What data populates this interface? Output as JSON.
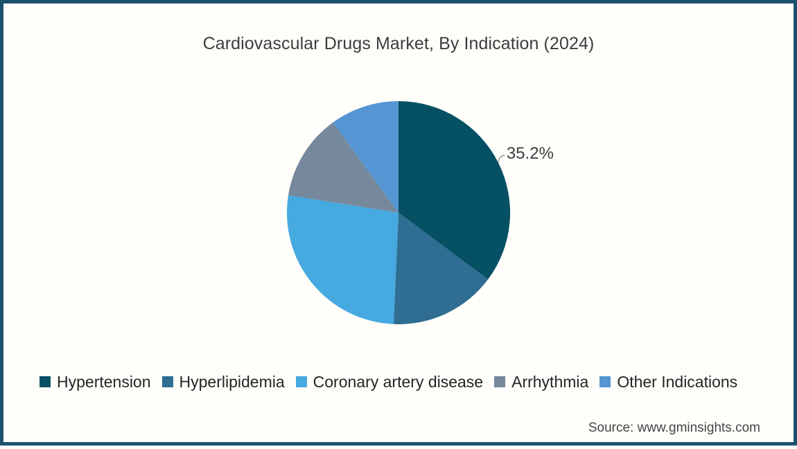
{
  "frame": {
    "border_color": "#1c516d",
    "background_color": "#fffefa"
  },
  "header": {
    "title": "Cardiovascular Drugs Market, By Indication (2024)"
  },
  "source": {
    "credit": "Source: www.gminsights.com"
  },
  "chart_data": {
    "type": "pie",
    "title": "Cardiovascular Drugs Market, By Indication (2024)",
    "start_angle": "top",
    "direction": "clockwise",
    "legend_position": "bottom",
    "slices": [
      {
        "label": "Hypertension",
        "value": 35.2,
        "color": "#065064",
        "data_label": "35.2%"
      },
      {
        "label": "Hyperlipidemia",
        "value": 15.5,
        "color": "#2f6e92",
        "data_label": ""
      },
      {
        "label": "Coronary artery disease",
        "value": 26.8,
        "color": "#46a9e0",
        "data_label": ""
      },
      {
        "label": "Arrhythmia",
        "value": 12.5,
        "color": "#75889c",
        "data_label": ""
      },
      {
        "label": "Other Indications",
        "value": 10.0,
        "color": "#5595d3",
        "data_label": ""
      }
    ]
  }
}
